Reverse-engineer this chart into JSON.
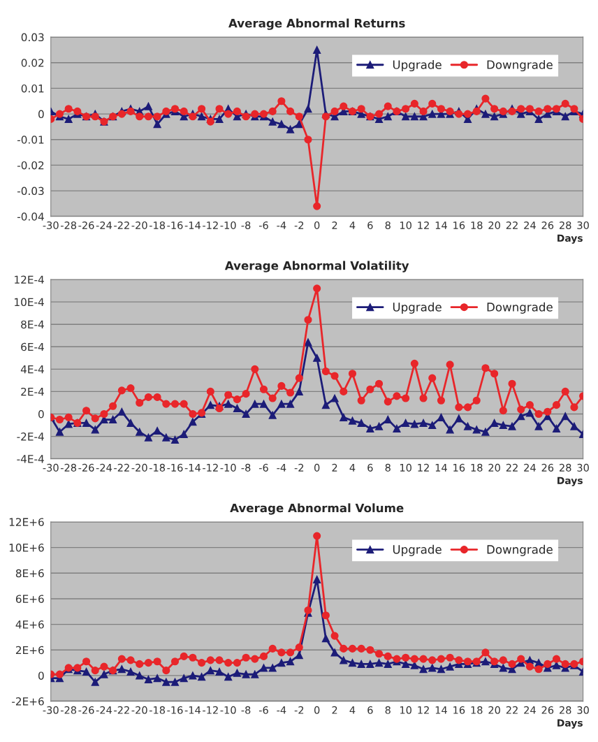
{
  "chart_data": [
    {
      "type": "line",
      "title": "Average Abnormal Returns",
      "xlabel": "Days",
      "grid": "y",
      "legend": "top right",
      "x": [
        -30,
        -29,
        -28,
        -27,
        -26,
        -25,
        -24,
        -23,
        -22,
        -21,
        -20,
        -19,
        -18,
        -17,
        -16,
        -15,
        -14,
        -13,
        -12,
        -11,
        -10,
        -9,
        -8,
        -7,
        -6,
        -5,
        -4,
        -3,
        -2,
        -1,
        0,
        1,
        2,
        3,
        4,
        5,
        6,
        7,
        8,
        9,
        10,
        11,
        12,
        13,
        14,
        15,
        16,
        17,
        18,
        19,
        20,
        21,
        22,
        23,
        24,
        25,
        26,
        27,
        28,
        29,
        30
      ],
      "xlim": [
        -30,
        30
      ],
      "xticks": [
        -30,
        -28,
        -26,
        -24,
        -22,
        -20,
        -18,
        -16,
        -14,
        -12,
        -10,
        -8,
        -6,
        -4,
        -2,
        0,
        2,
        4,
        6,
        8,
        10,
        12,
        14,
        16,
        18,
        20,
        22,
        24,
        26,
        28,
        30
      ],
      "ylim": [
        -0.04,
        0.03
      ],
      "yticks": [
        -0.04,
        -0.03,
        -0.02,
        -0.01,
        0,
        0.01,
        0.02,
        0.03
      ],
      "series": [
        {
          "name": "Upgrade",
          "color": "#1c1c78",
          "marker": "triangle",
          "values": [
            0.001,
            -0.001,
            -0.002,
            0,
            -0.001,
            0,
            -0.003,
            -0.001,
            0.001,
            0.002,
            0.001,
            0.003,
            -0.004,
            0,
            0.001,
            -0.001,
            0,
            -0.001,
            -0.002,
            -0.002,
            0.002,
            -0.001,
            0,
            -0.001,
            -0.001,
            -0.003,
            -0.004,
            -0.006,
            -0.004,
            0.002,
            0.025,
            0,
            -0.001,
            0.001,
            0.001,
            0,
            -0.001,
            -0.002,
            -0.001,
            0.001,
            -0.001,
            -0.001,
            -0.001,
            0,
            0,
            0,
            0.001,
            -0.002,
            0.002,
            0,
            -0.001,
            0,
            0.002,
            0,
            0.001,
            -0.002,
            0,
            0.001,
            -0.001,
            0.001,
            0
          ]
        },
        {
          "name": "Downgrade",
          "color": "#e8262a",
          "marker": "circle",
          "values": [
            -0.002,
            0,
            0.002,
            0.001,
            -0.001,
            -0.001,
            -0.003,
            -0.001,
            0,
            0.001,
            -0.001,
            -0.001,
            -0.001,
            0.001,
            0.002,
            0.001,
            -0.001,
            0.002,
            -0.003,
            0.002,
            0,
            0.001,
            -0.001,
            0,
            0,
            0.001,
            0.005,
            0.001,
            -0.001,
            -0.01,
            -0.036,
            -0.001,
            0.001,
            0.003,
            0.001,
            0.002,
            -0.001,
            0,
            0.003,
            0.001,
            0.002,
            0.004,
            0.001,
            0.004,
            0.002,
            0.001,
            0,
            0,
            0.001,
            0.006,
            0.002,
            0.001,
            0.001,
            0.002,
            0.002,
            0.001,
            0.002,
            0.002,
            0.004,
            0.002,
            -0.002
          ]
        }
      ]
    },
    {
      "type": "line",
      "title": "Average Abnormal Volatility",
      "xlabel": "Days",
      "grid": "y",
      "legend": "top right",
      "x": [
        -30,
        -29,
        -28,
        -27,
        -26,
        -25,
        -24,
        -23,
        -22,
        -21,
        -20,
        -19,
        -18,
        -17,
        -16,
        -15,
        -14,
        -13,
        -12,
        -11,
        -10,
        -9,
        -8,
        -7,
        -6,
        -5,
        -4,
        -3,
        -2,
        -1,
        0,
        1,
        2,
        3,
        4,
        5,
        6,
        7,
        8,
        9,
        10,
        11,
        12,
        13,
        14,
        15,
        16,
        17,
        18,
        19,
        20,
        21,
        22,
        23,
        24,
        25,
        26,
        27,
        28,
        29,
        30
      ],
      "xlim": [
        -30,
        30
      ],
      "xticks": [
        -30,
        -28,
        -26,
        -24,
        -22,
        -20,
        -18,
        -16,
        -14,
        -12,
        -10,
        -8,
        -6,
        -4,
        -2,
        0,
        2,
        4,
        6,
        8,
        10,
        12,
        14,
        16,
        18,
        20,
        22,
        24,
        26,
        28,
        30
      ],
      "ylim": [
        -0.0004,
        0.0012
      ],
      "yticks": [
        {
          "value": -0.0004,
          "label": "-4E-4"
        },
        {
          "value": -0.0002,
          "label": "-2E-4"
        },
        0,
        {
          "value": 0.0002,
          "label": "2E-4"
        },
        {
          "value": 0.0004,
          "label": "4E-4"
        },
        {
          "value": 0.0006,
          "label": "6E-4"
        },
        {
          "value": 0.0008,
          "label": "8E-4"
        },
        {
          "value": 0.001,
          "label": "10E-4"
        },
        {
          "value": 0.0012,
          "label": "12E-4"
        }
      ],
      "series": [
        {
          "name": "Upgrade",
          "color": "#1c1c78",
          "marker": "triangle",
          "values": [
            -3e-05,
            -0.00016,
            -9e-05,
            -8e-05,
            -8e-05,
            -0.00014,
            -5e-05,
            -5e-05,
            2e-05,
            -8e-05,
            -0.00016,
            -0.00021,
            -0.00015,
            -0.00021,
            -0.00023,
            -0.00018,
            -7e-05,
            0,
            8e-05,
            7e-05,
            9e-05,
            5e-05,
            0,
            9e-05,
            9e-05,
            -1e-05,
            9e-05,
            9e-05,
            0.0002,
            0.00064,
            0.0005,
            8e-05,
            0.00014,
            -3e-05,
            -6e-05,
            -8e-05,
            -0.00013,
            -0.00011,
            -5e-05,
            -0.00013,
            -8e-05,
            -9e-05,
            -8e-05,
            -0.0001,
            -3e-05,
            -0.00014,
            -4e-05,
            -0.00011,
            -0.00014,
            -0.00016,
            -8e-05,
            -0.0001,
            -0.00011,
            -2e-05,
            1e-05,
            -0.00011,
            -2e-05,
            -0.00013,
            -2e-05,
            -0.00011,
            -0.00018
          ]
        },
        {
          "name": "Downgrade",
          "color": "#e8262a",
          "marker": "circle",
          "values": [
            -3e-05,
            -5e-05,
            -3e-05,
            -8e-05,
            3e-05,
            -4e-05,
            0,
            7e-05,
            0.00021,
            0.00023,
            0.0001,
            0.00015,
            0.00015,
            9e-05,
            9e-05,
            9e-05,
            0,
            1e-05,
            0.0002,
            5e-05,
            0.00017,
            0.00013,
            0.00018,
            0.0004,
            0.00022,
            0.00014,
            0.00025,
            0.00019,
            0.00032,
            0.00084,
            0.00112,
            0.00038,
            0.00034,
            0.0002,
            0.00036,
            0.00012,
            0.00022,
            0.00027,
            0.00011,
            0.00016,
            0.00014,
            0.00045,
            0.00014,
            0.00032,
            0.00012,
            0.00044,
            6e-05,
            6e-05,
            0.00012,
            0.00041,
            0.00036,
            3e-05,
            0.00027,
            4e-05,
            8e-05,
            0,
            2e-05,
            8e-05,
            0.0002,
            6e-05,
            0.00016
          ]
        }
      ]
    },
    {
      "type": "line",
      "title": "Average Abnormal Volume",
      "xlabel": "Days",
      "grid": "y",
      "legend": "top right",
      "x": [
        -30,
        -29,
        -28,
        -27,
        -26,
        -25,
        -24,
        -23,
        -22,
        -21,
        -20,
        -19,
        -18,
        -17,
        -16,
        -15,
        -14,
        -13,
        -12,
        -11,
        -10,
        -9,
        -8,
        -7,
        -6,
        -5,
        -4,
        -3,
        -2,
        -1,
        0,
        1,
        2,
        3,
        4,
        5,
        6,
        7,
        8,
        9,
        10,
        11,
        12,
        13,
        14,
        15,
        16,
        17,
        18,
        19,
        20,
        21,
        22,
        23,
        24,
        25,
        26,
        27,
        28,
        29,
        30
      ],
      "xlim": [
        -30,
        30
      ],
      "xticks": [
        -30,
        -28,
        -26,
        -24,
        -22,
        -20,
        -18,
        -16,
        -14,
        -12,
        -10,
        -8,
        -6,
        -4,
        -2,
        0,
        2,
        4,
        6,
        8,
        10,
        12,
        14,
        16,
        18,
        20,
        22,
        24,
        26,
        28,
        30
      ],
      "ylim": [
        -2000000.0,
        12000000.0
      ],
      "yticks": [
        {
          "value": -2000000.0,
          "label": "-2E+6"
        },
        0,
        {
          "value": 2000000.0,
          "label": "2E+6"
        },
        {
          "value": 4000000.0,
          "label": "4E+6"
        },
        {
          "value": 6000000.0,
          "label": "6E+6"
        },
        {
          "value": 8000000.0,
          "label": "8E+6"
        },
        {
          "value": 10000000.0,
          "label": "10E+6"
        },
        {
          "value": 12000000.0,
          "label": "12E+6"
        }
      ],
      "series": [
        {
          "name": "Upgrade",
          "color": "#1c1c78",
          "marker": "triangle",
          "values": [
            -200000.0,
            -200000.0,
            500000.0,
            400000.0,
            300000.0,
            -500000.0,
            100000.0,
            400000.0,
            500000.0,
            300000.0,
            0,
            -300000.0,
            -200000.0,
            -500000.0,
            -500000.0,
            -200000.0,
            0,
            -100000.0,
            400000.0,
            300000.0,
            -100000.0,
            200000.0,
            100000.0,
            100000.0,
            600000.0,
            600000.0,
            1000000.0,
            1100000.0,
            1600000.0,
            4900000.0,
            7500000.0,
            2900000.0,
            1800000.0,
            1200000.0,
            1000000.0,
            900000.0,
            900000.0,
            1000000.0,
            900000.0,
            1100000.0,
            900000.0,
            800000.0,
            500000.0,
            600000.0,
            500000.0,
            700000.0,
            900000.0,
            900000.0,
            1000000.0,
            1100000.0,
            900000.0,
            600000.0,
            500000.0,
            1000000.0,
            1200000.0,
            1000000.0,
            600000.0,
            800000.0,
            600000.0,
            800000.0,
            300000.0
          ]
        },
        {
          "name": "Downgrade",
          "color": "#e8262a",
          "marker": "circle",
          "values": [
            100000.0,
            100000.0,
            600000.0,
            600000.0,
            1100000.0,
            400000.0,
            700000.0,
            400000.0,
            1300000.0,
            1200000.0,
            900000.0,
            1000000.0,
            1100000.0,
            400000.0,
            1100000.0,
            1500000.0,
            1400000.0,
            1000000.0,
            1200000.0,
            1200000.0,
            1000000.0,
            1000000.0,
            1400000.0,
            1300000.0,
            1500000.0,
            2100000.0,
            1800000.0,
            1800000.0,
            2200000.0,
            5100000.0,
            10900000.0,
            4700000.0,
            3100000.0,
            2100000.0,
            2100000.0,
            2100000.0,
            2000000.0,
            1700000.0,
            1500000.0,
            1300000.0,
            1400000.0,
            1300000.0,
            1300000.0,
            1200000.0,
            1300000.0,
            1400000.0,
            1200000.0,
            1100000.0,
            1100000.0,
            1800000.0,
            1100000.0,
            1200000.0,
            900000.0,
            1300000.0,
            700000.0,
            500000.0,
            900000.0,
            1300000.0,
            900000.0,
            900000.0,
            1100000.0
          ]
        }
      ]
    }
  ]
}
